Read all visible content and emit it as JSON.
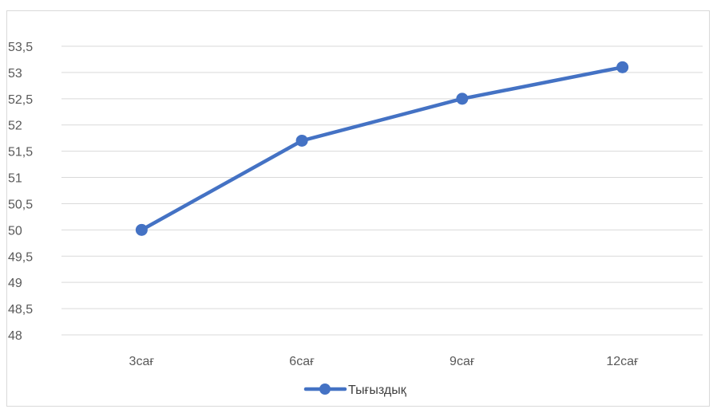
{
  "chart_data": {
    "type": "line",
    "categories": [
      "3сағ",
      "6сағ",
      "9сағ",
      "12сағ"
    ],
    "series": [
      {
        "name": "Тығыздық",
        "values": [
          50,
          51.7,
          52.5,
          53.1
        ],
        "color": "#4472c4"
      }
    ],
    "ylim": [
      48,
      53.5
    ],
    "yticks": [
      "48",
      "48,5",
      "49",
      "49,5",
      "50",
      "50,5",
      "51",
      "51,5",
      "52",
      "52,5",
      "53",
      "53,5"
    ],
    "grid": true,
    "legend": "bottom",
    "colors": {
      "series": "#4472c4",
      "grid": "#d9d9d9",
      "axis_text": "#595959"
    }
  }
}
